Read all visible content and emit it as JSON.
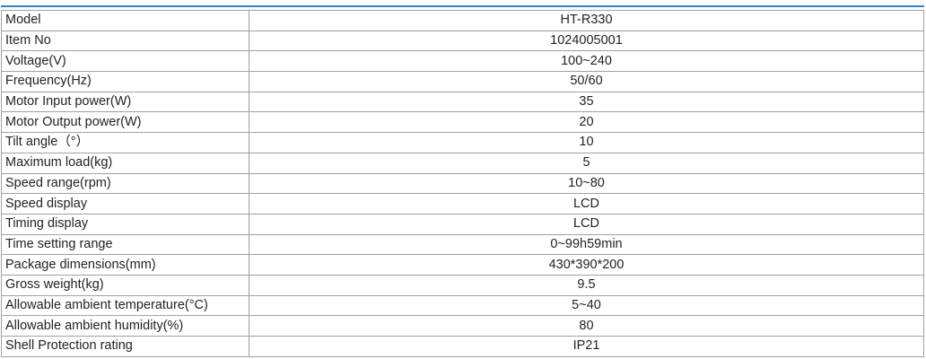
{
  "table": {
    "rows": [
      [
        "Model",
        "HT-R330"
      ],
      [
        "Item No",
        "1024005001"
      ],
      [
        "Voltage(V)",
        "100~240"
      ],
      [
        "Frequency(Hz)",
        "50/60"
      ],
      [
        "Motor Input power(W)",
        "35"
      ],
      [
        "Motor Output power(W)",
        "20"
      ],
      [
        "Tilt angle（°）",
        "10"
      ],
      [
        "Maximum load(kg)",
        "5"
      ],
      [
        "Speed range(rpm)",
        "10~80"
      ],
      [
        "Speed display",
        "LCD"
      ],
      [
        "Timing display",
        "LCD"
      ],
      [
        "Time setting range",
        "0~99h59min"
      ],
      [
        "Package dimensions(mm)",
        "430*390*200"
      ],
      [
        "Gross weight(kg)",
        "9.5"
      ],
      [
        "Allowable ambient temperature(°C)",
        "5~40"
      ],
      [
        "Allowable ambient humidity(%)",
        "80"
      ],
      [
        "Shell Protection rating",
        "IP21"
      ]
    ]
  }
}
